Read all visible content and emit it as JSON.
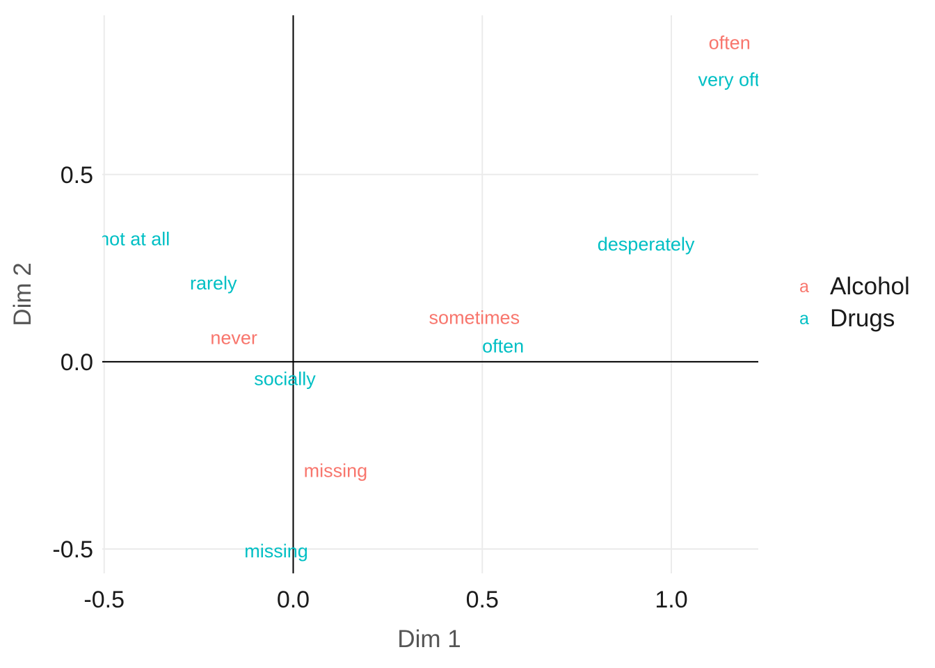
{
  "chart_data": {
    "type": "scatter",
    "xlabel": "Dim 1",
    "ylabel": "Dim 2",
    "xlim": [
      -0.505,
      1.23
    ],
    "ylim": [
      -0.565,
      0.925
    ],
    "x_ticks": [
      {
        "value": -0.5,
        "label": "-0.5"
      },
      {
        "value": 0.0,
        "label": "0.0"
      },
      {
        "value": 0.5,
        "label": "0.5"
      },
      {
        "value": 1.0,
        "label": "1.0"
      }
    ],
    "y_ticks": [
      {
        "value": 0.5,
        "label": "0.5"
      },
      {
        "value": 0.0,
        "label": "0.0"
      },
      {
        "value": -0.5,
        "label": "-0.5"
      }
    ],
    "reference_lines": {
      "x": 0,
      "y": 0
    },
    "grid": true,
    "legend": {
      "position": "right",
      "key_glyph": "a",
      "entries": [
        {
          "name": "Alcohol",
          "color": "#F8766D"
        },
        {
          "name": "Drugs",
          "color": "#00BFC4"
        }
      ]
    },
    "series": [
      {
        "name": "Alcohol",
        "color": "#F8766D",
        "points": [
          {
            "label": "often",
            "x": 1.154,
            "y": 0.852
          },
          {
            "label": "sometimes",
            "x": 0.479,
            "y": 0.118
          },
          {
            "label": "never",
            "x": -0.157,
            "y": 0.064
          },
          {
            "label": "missing",
            "x": 0.112,
            "y": -0.291
          }
        ]
      },
      {
        "name": "Drugs",
        "color": "#00BFC4",
        "points": [
          {
            "label": "very often",
            "x": 1.18,
            "y": 0.753
          },
          {
            "label": "not at all",
            "x": -0.42,
            "y": 0.328
          },
          {
            "label": "rarely",
            "x": -0.211,
            "y": 0.21
          },
          {
            "label": "desperately",
            "x": 0.933,
            "y": 0.314
          },
          {
            "label": "often",
            "x": 0.555,
            "y": 0.042
          },
          {
            "label": "socially",
            "x": -0.022,
            "y": -0.046
          },
          {
            "label": "missing",
            "x": -0.045,
            "y": -0.506
          }
        ]
      }
    ]
  }
}
